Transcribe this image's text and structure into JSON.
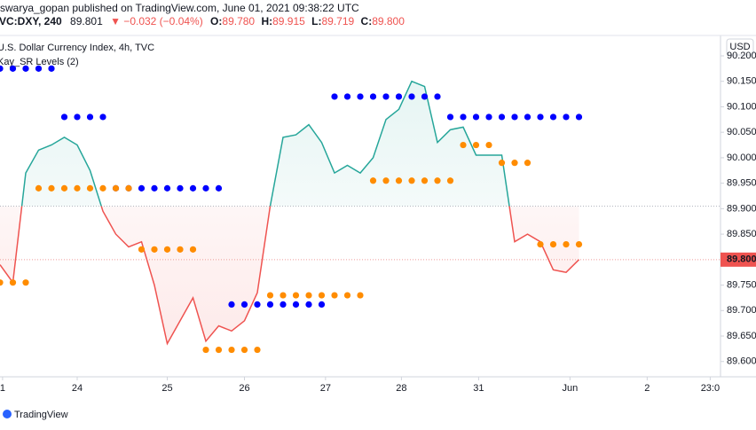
{
  "chart_data": {
    "type": "baseline",
    "header": {
      "publisher": "swarya_gopan published on TradingView.com, June 01, 2021 09:38:22 UTC",
      "symbol": "VC:DXY, 240",
      "last": "89.801",
      "change": "▼ −0.032 (−0.04%)",
      "open_label": "O:",
      "open": "89.780",
      "high_label": "H:",
      "high": "89.915",
      "low_label": "L:",
      "low": "89.719",
      "close_label": "C:",
      "close": "89.800"
    },
    "title": "U.S. Dollar Currency Index, 4h, TVC",
    "indicator": "Kay_SR Levels (2)",
    "currency": "USD",
    "brand": "TradingView",
    "baseline": 89.905,
    "up_color": "#26a69a",
    "down_color": "#ef5350",
    "last_price": {
      "value": 89.8,
      "label": "89.800"
    },
    "x": [
      0,
      1,
      2,
      3,
      4,
      5,
      6,
      7,
      8,
      9,
      10,
      11,
      12,
      13,
      14,
      15,
      16,
      17,
      18,
      19,
      20,
      21,
      22,
      23,
      24,
      25,
      26,
      27,
      28,
      29,
      30,
      31,
      32,
      33,
      34,
      35,
      36,
      37,
      38,
      39,
      40,
      41,
      42,
      43,
      44,
      45
    ],
    "values": [
      89.79,
      89.755,
      89.97,
      90.015,
      90.025,
      90.04,
      90.025,
      89.975,
      89.895,
      89.85,
      89.825,
      89.835,
      89.75,
      89.635,
      89.68,
      89.725,
      89.64,
      89.67,
      89.66,
      89.68,
      89.735,
      89.905,
      90.04,
      90.045,
      90.065,
      90.03,
      89.97,
      89.985,
      89.97,
      90.0,
      90.075,
      90.095,
      90.15,
      90.14,
      90.03,
      90.055,
      90.06,
      90.005,
      90.005,
      90.005,
      89.835,
      89.85,
      89.835,
      89.78,
      89.775,
      89.8
    ],
    "levels": [
      {
        "color": "#0000ff",
        "value": 90.175,
        "from": 0,
        "to": 4
      },
      {
        "color": "#0000ff",
        "value": 90.08,
        "from": 5,
        "to": 8
      },
      {
        "color": "#0000ff",
        "value": 89.94,
        "from": 9,
        "to": 17
      },
      {
        "color": "#0000ff",
        "value": 89.712,
        "from": 18,
        "to": 25
      },
      {
        "color": "#0000ff",
        "value": 90.12,
        "from": 26,
        "to": 34
      },
      {
        "color": "#0000ff",
        "value": 90.08,
        "from": 35,
        "to": 45
      },
      {
        "color": "#ff8c00",
        "value": 89.755,
        "from": 0,
        "to": 2
      },
      {
        "color": "#ff8c00",
        "value": 89.94,
        "from": 3,
        "to": 10
      },
      {
        "color": "#ff8c00",
        "value": 89.82,
        "from": 11,
        "to": 15
      },
      {
        "color": "#ff8c00",
        "value": 89.623,
        "from": 16,
        "to": 20
      },
      {
        "color": "#ff8c00",
        "value": 89.73,
        "from": 21,
        "to": 28
      },
      {
        "color": "#ff8c00",
        "value": 89.955,
        "from": 29,
        "to": 35
      },
      {
        "color": "#ff8c00",
        "value": 90.025,
        "from": 36,
        "to": 38
      },
      {
        "color": "#ff8c00",
        "value": 89.99,
        "from": 39,
        "to": 41
      },
      {
        "color": "#ff8c00",
        "value": 89.83,
        "from": 42,
        "to": 45
      }
    ],
    "xlim": [
      0,
      56
    ],
    "ylim": [
      89.57,
      90.24
    ],
    "xticks": [
      {
        "value": 0.2,
        "label": "1"
      },
      {
        "value": 6,
        "label": "24"
      },
      {
        "value": 13,
        "label": "25"
      },
      {
        "value": 19,
        "label": "26"
      },
      {
        "value": 25.3,
        "label": "27"
      },
      {
        "value": 31.2,
        "label": "28"
      },
      {
        "value": 37.2,
        "label": "31"
      },
      {
        "value": 44.3,
        "label": "Jun"
      },
      {
        "value": 50.3,
        "label": "2"
      },
      {
        "value": 55.2,
        "label": "23:0"
      }
    ],
    "yticks": [
      {
        "value": 90.2,
        "label": "90.200"
      },
      {
        "value": 90.15,
        "label": "90.150"
      },
      {
        "value": 90.1,
        "label": "90.100"
      },
      {
        "value": 90.05,
        "label": "90.050"
      },
      {
        "value": 90.0,
        "label": "90.000"
      },
      {
        "value": 89.95,
        "label": "89.950"
      },
      {
        "value": 89.9,
        "label": "89.900"
      },
      {
        "value": 89.85,
        "label": "89.850"
      },
      {
        "value": 89.8,
        "label": "89.800"
      },
      {
        "value": 89.75,
        "label": "89.750"
      },
      {
        "value": 89.7,
        "label": "89.700"
      },
      {
        "value": 89.65,
        "label": "89.650"
      },
      {
        "value": 89.6,
        "label": "89.600"
      }
    ],
    "grid": false
  }
}
